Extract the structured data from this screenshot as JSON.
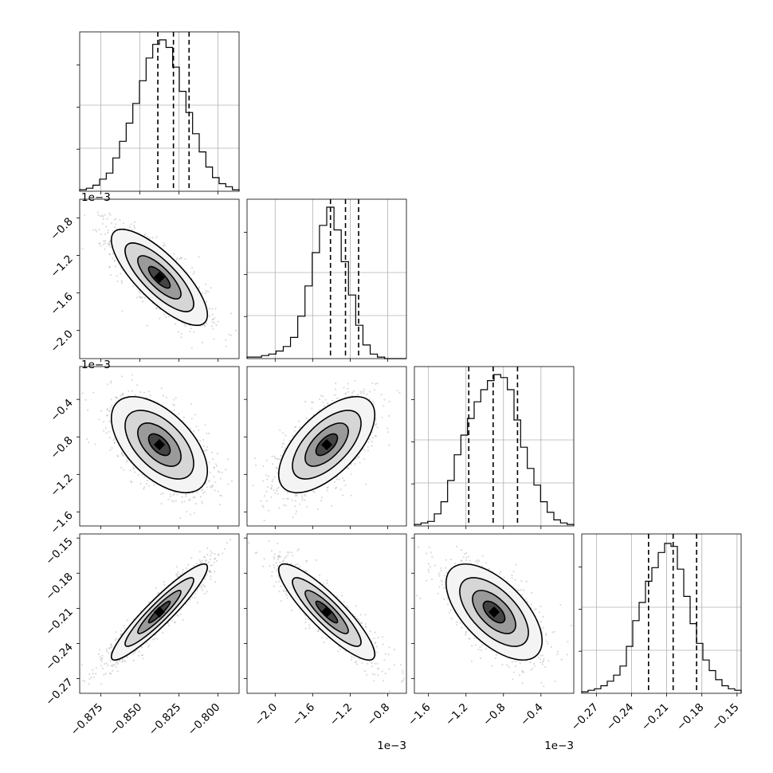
{
  "chart_data": {
    "type": "corner",
    "title": "",
    "parameters": [
      {
        "label": "",
        "quantiles": [
          -0.8385,
          -0.8285,
          -0.8185
        ],
        "range": [
          -0.8885,
          -0.7865
        ],
        "ticks": [
          {
            "v": -0.875,
            "t": "−0.875"
          },
          {
            "v": -0.85,
            "t": "−0.850"
          },
          {
            "v": -0.825,
            "t": "−0.825"
          },
          {
            "v": -0.8,
            "t": "−0.800"
          }
        ],
        "offset_text": ""
      },
      {
        "label": "",
        "quantiles": [
          -1.41,
          -1.25,
          -1.11
        ],
        "range": [
          -2.3,
          -0.6
        ],
        "ticks": [
          {
            "v": -2.0,
            "t": "−2.0"
          },
          {
            "v": -1.6,
            "t": "−1.6"
          },
          {
            "v": -1.2,
            "t": "−1.2"
          },
          {
            "v": -0.8,
            "t": "−0.8"
          }
        ],
        "offset_text": "1e−3"
      },
      {
        "label": "",
        "quantiles": [
          -1.17,
          -0.91,
          -0.65
        ],
        "range": [
          -1.75,
          -0.05
        ],
        "ticks": [
          {
            "v": -1.6,
            "t": "−1.6"
          },
          {
            "v": -1.2,
            "t": "−1.2"
          },
          {
            "v": -0.8,
            "t": "−0.8"
          },
          {
            "v": -0.4,
            "t": "−0.4"
          }
        ],
        "offset_text": "1e−3"
      },
      {
        "label": "",
        "quantiles": [
          -0.2255,
          -0.2045,
          -0.1845
        ],
        "range": [
          -0.2825,
          -0.1465
        ],
        "ticks": [
          {
            "v": -0.27,
            "t": "−0.27"
          },
          {
            "v": -0.24,
            "t": "−0.24"
          },
          {
            "v": -0.21,
            "t": "−0.21"
          },
          {
            "v": -0.18,
            "t": "−0.18"
          },
          {
            "v": -0.15,
            "t": "−0.15"
          }
        ],
        "offset_text": ""
      }
    ],
    "y_ticks": [
      null,
      [
        {
          "v": -0.8,
          "t": "−0.8"
        },
        {
          "v": -1.2,
          "t": "−1.2"
        },
        {
          "v": -1.6,
          "t": "−1.6"
        },
        {
          "v": -2.0,
          "t": "−2.0"
        }
      ],
      [
        {
          "v": -0.4,
          "t": "−0.4"
        },
        {
          "v": -0.8,
          "t": "−0.8"
        },
        {
          "v": -1.2,
          "t": "−1.2"
        },
        {
          "v": -1.6,
          "t": "−1.6"
        }
      ],
      [
        {
          "v": -0.15,
          "t": "−0.15"
        },
        {
          "v": -0.18,
          "t": "−0.18"
        },
        {
          "v": -0.21,
          "t": "−0.21"
        },
        {
          "v": -0.24,
          "t": "−0.24"
        },
        {
          "v": -0.27,
          "t": "−0.27"
        }
      ]
    ],
    "y_offset_text": [
      "",
      "1e−3",
      "1e−3",
      ""
    ],
    "histograms": [
      [
        0.01,
        0.02,
        0.04,
        0.08,
        0.12,
        0.22,
        0.33,
        0.45,
        0.58,
        0.73,
        0.88,
        0.97,
        1.0,
        0.95,
        0.82,
        0.66,
        0.52,
        0.38,
        0.26,
        0.16,
        0.09,
        0.05,
        0.03,
        0.01
      ],
      [
        0.01,
        0.01,
        0.02,
        0.03,
        0.05,
        0.08,
        0.14,
        0.28,
        0.48,
        0.7,
        0.88,
        1.0,
        0.85,
        0.64,
        0.42,
        0.22,
        0.09,
        0.03,
        0.01,
        0.0,
        0.0,
        0.0
      ],
      [
        0.01,
        0.02,
        0.03,
        0.08,
        0.16,
        0.3,
        0.47,
        0.6,
        0.71,
        0.82,
        0.9,
        0.96,
        1.0,
        0.98,
        0.9,
        0.7,
        0.52,
        0.38,
        0.27,
        0.16,
        0.09,
        0.04,
        0.02,
        0.01
      ],
      [
        0.01,
        0.02,
        0.03,
        0.05,
        0.08,
        0.12,
        0.18,
        0.31,
        0.48,
        0.6,
        0.74,
        0.83,
        0.93,
        0.99,
        0.97,
        0.82,
        0.64,
        0.46,
        0.33,
        0.22,
        0.15,
        0.09,
        0.05,
        0.03,
        0.02
      ]
    ],
    "pairs": [
      {
        "x": 0,
        "y": 1,
        "corr": -0.78
      },
      {
        "x": 0,
        "y": 2,
        "corr": -0.55
      },
      {
        "x": 1,
        "y": 2,
        "corr": 0.62
      },
      {
        "x": 0,
        "y": 3,
        "corr": 0.93
      },
      {
        "x": 1,
        "y": 3,
        "corr": -0.88
      },
      {
        "x": 2,
        "y": 3,
        "corr": -0.6
      }
    ],
    "grid": true,
    "quantile_levels": [
      0.16,
      0.5,
      0.84
    ]
  }
}
